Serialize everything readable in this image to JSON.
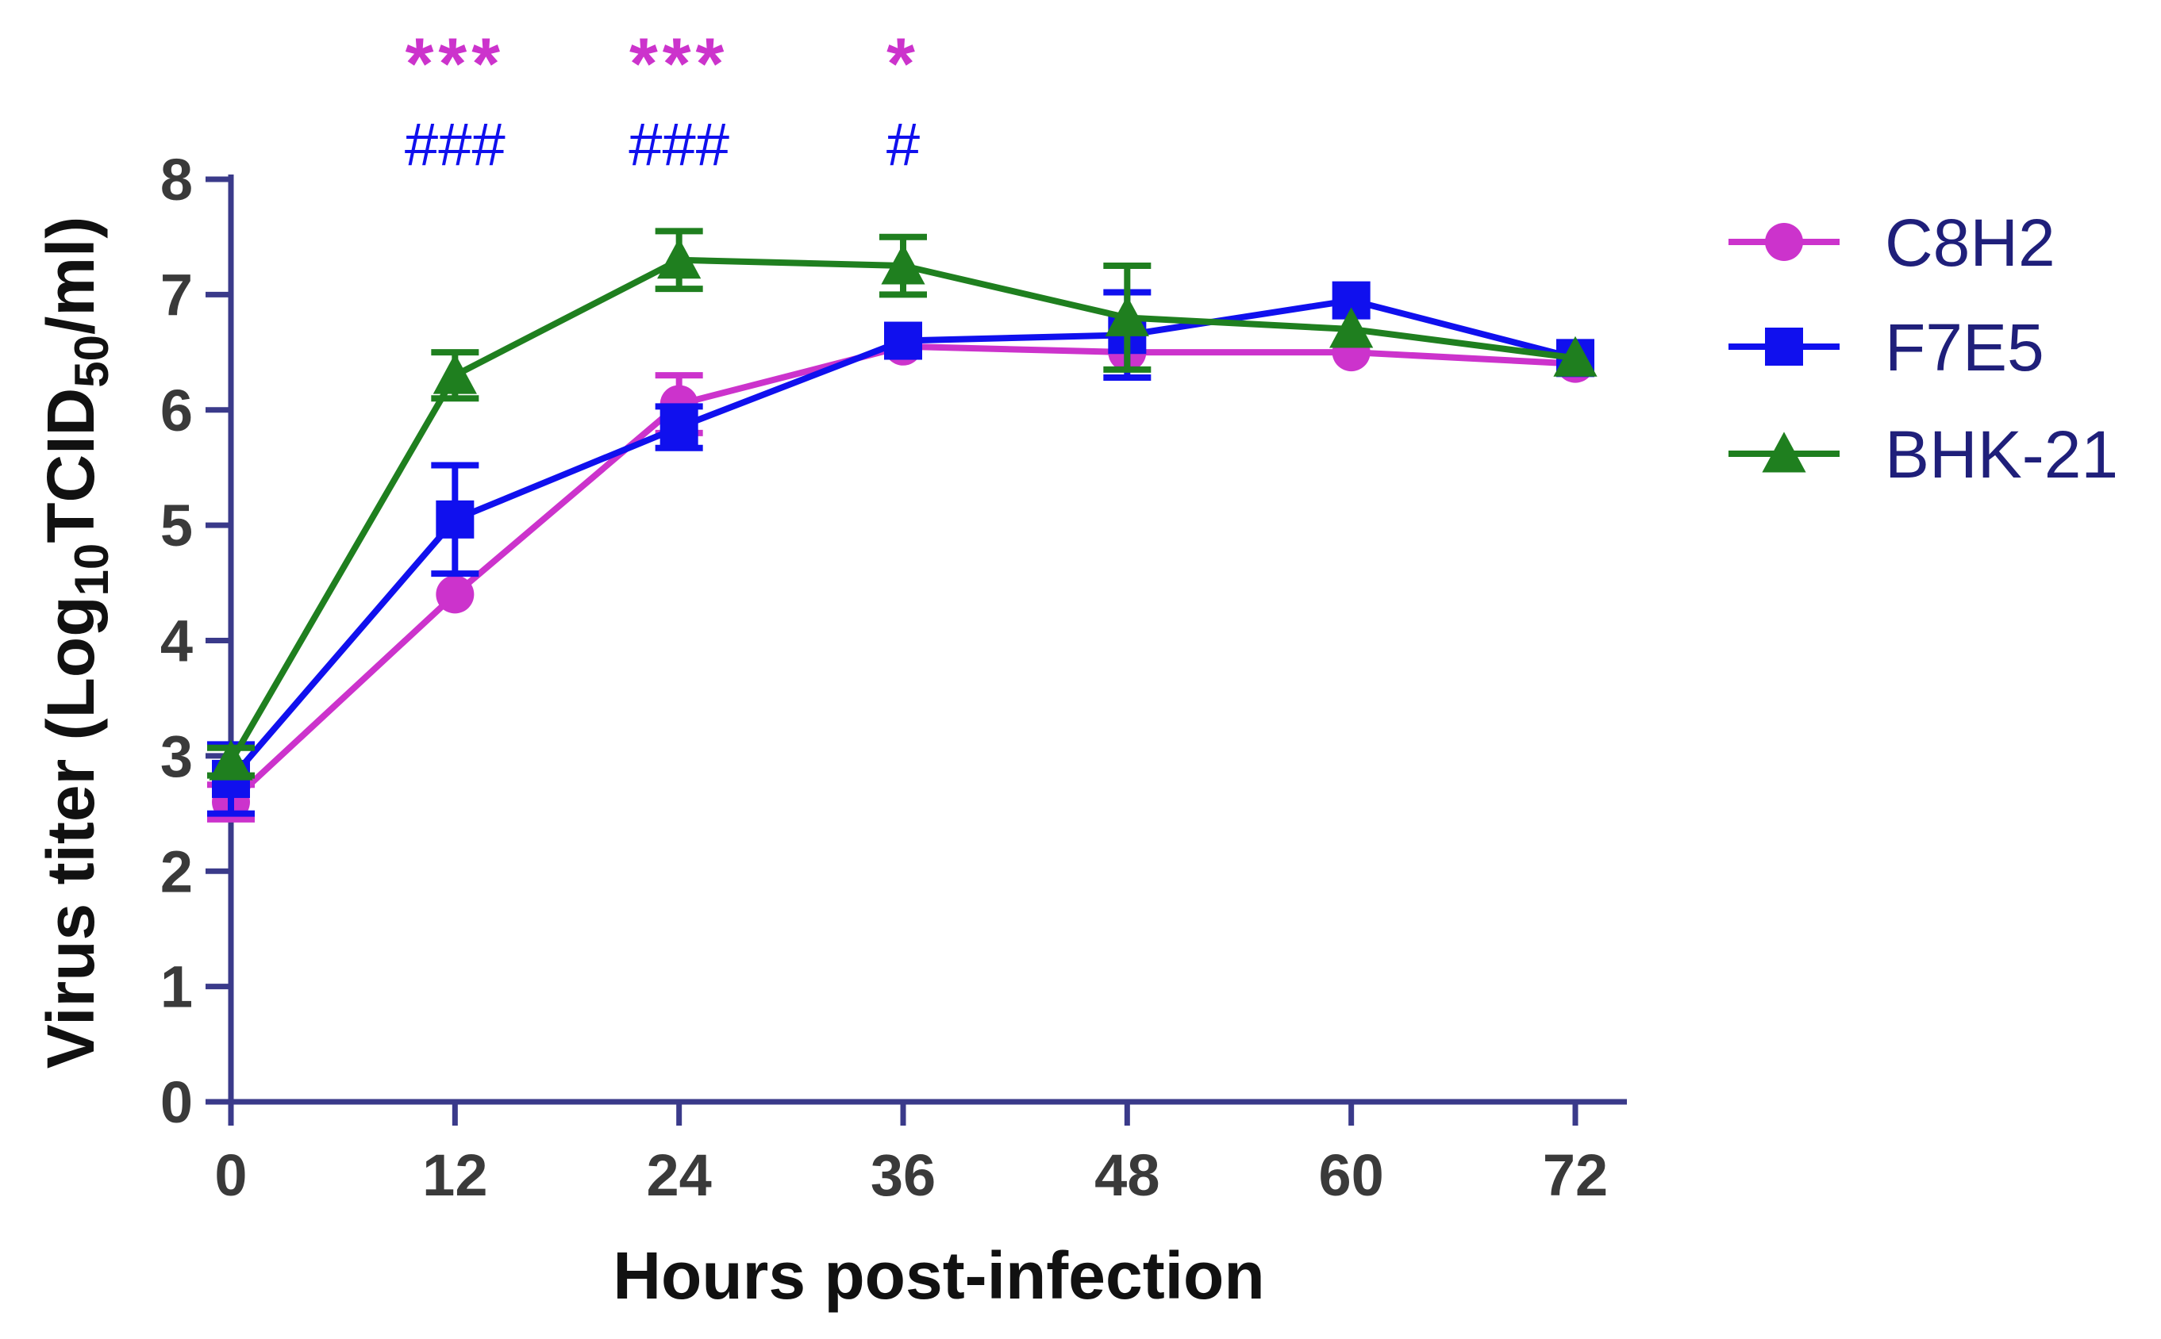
{
  "chart_data": {
    "type": "line",
    "title": "",
    "xlabel": "Hours post-infection",
    "ylabel_parts": {
      "prefix": "Virus titer (Log",
      "sub1": "10",
      "mid": "TCID",
      "sub2": "50",
      "suffix": "/ml)"
    },
    "x": [
      0,
      12,
      24,
      36,
      48,
      60,
      72
    ],
    "x_tick_labels": [
      "0",
      "12",
      "24",
      "36",
      "48",
      "60",
      "72"
    ],
    "y_tick_labels": [
      "0",
      "1",
      "2",
      "3",
      "4",
      "5",
      "6",
      "7",
      "8"
    ],
    "xlim": [
      0,
      75
    ],
    "ylim": [
      0,
      8
    ],
    "grid": false,
    "legend_position": "right",
    "series": [
      {
        "name": "C8H2",
        "color": "#cc33cc",
        "marker": "circle",
        "values": [
          2.6,
          4.4,
          6.05,
          6.55,
          6.5,
          6.5,
          6.4
        ],
        "errors": [
          0.15,
          0.0,
          0.25,
          0.0,
          0.0,
          0.0,
          0.0
        ]
      },
      {
        "name": "F7E5",
        "color": "#1010ee",
        "marker": "square",
        "values": [
          2.8,
          5.05,
          5.85,
          6.6,
          6.65,
          6.95,
          6.45
        ],
        "errors": [
          0.3,
          0.47,
          0.18,
          0.0,
          0.37,
          0.0,
          0.0
        ]
      },
      {
        "name": "BHK-21",
        "color": "#1f7f1f",
        "marker": "triangle",
        "values": [
          2.95,
          6.3,
          7.3,
          7.25,
          6.8,
          6.7,
          6.45
        ],
        "errors": [
          0.12,
          0.2,
          0.25,
          0.25,
          0.45,
          0.0,
          0.0
        ]
      }
    ],
    "significance": [
      {
        "x": 12,
        "stars": "***",
        "hashes": "###"
      },
      {
        "x": 24,
        "stars": "***",
        "hashes": "###"
      },
      {
        "x": 36,
        "stars": "*",
        "hashes": "#"
      }
    ],
    "colors": {
      "axis": "#3a3a8a",
      "stars": "#cc33cc",
      "hashes": "#1010ee"
    }
  }
}
